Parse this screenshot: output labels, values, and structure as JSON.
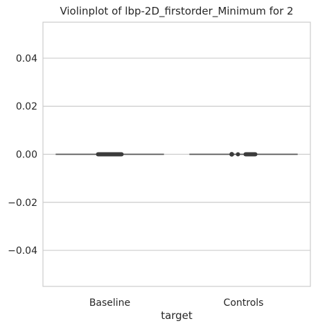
{
  "chart_data": {
    "type": "violin",
    "title": "Violinplot of lbp-2D_firstorder_Minimum for 2",
    "xlabel": "target",
    "ylabel": "",
    "categories": [
      "Baseline",
      "Controls"
    ],
    "ylim": [
      -0.055,
      0.055
    ],
    "yticks": [
      -0.04,
      -0.02,
      0.0,
      0.02,
      0.04
    ],
    "ytick_labels": [
      "−0.04",
      "−0.02",
      "0.00",
      "0.02",
      "0.04"
    ],
    "grid": true,
    "series": [
      {
        "category": "Baseline",
        "min": 0.0,
        "q1": 0.0,
        "median": 0.0,
        "q3": 0.0,
        "max": 0.0
      },
      {
        "category": "Controls",
        "min": 0.0,
        "q1": 0.0,
        "median": 0.0,
        "q3": 0.0,
        "max": 0.0
      }
    ],
    "colors": {
      "grid": "#cccccc",
      "spine": "#cccccc",
      "line": "#555555",
      "box": "#3b3b3b",
      "text": "#262626"
    }
  }
}
